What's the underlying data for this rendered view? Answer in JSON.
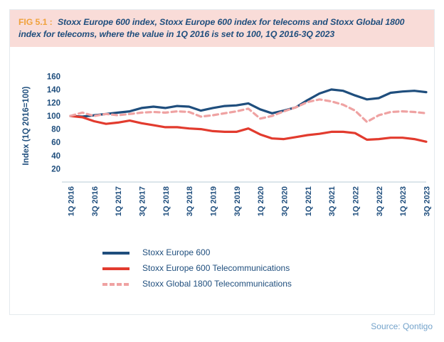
{
  "header": {
    "fig_label": "FIG 5.1 :",
    "title": "Stoxx Europe 600 index, Stoxx Europe 600 index for telecoms and Stoxx Global 1800 index for telecoms, where the value in 1Q 2016 is set to 100, 1Q 2016-3Q 2023"
  },
  "footer": {
    "source": "Source: Qontigo"
  },
  "colors": {
    "header_bg": "#f9dcd8",
    "fig_label": "#f0a23c",
    "navy": "#1f4e7d",
    "axis_line": "#dbe5ea",
    "source_text": "#74a3cb",
    "box_border": "#e4eaee"
  },
  "chart_data": {
    "type": "line",
    "ylabel": "Index (1Q 2016=100)",
    "ylim": [
      0,
      170
    ],
    "y_ticks": [
      20,
      40,
      60,
      80,
      100,
      120,
      140,
      160
    ],
    "x_tick_step": 2,
    "grid": false,
    "legend_position": "bottom-left",
    "categories": [
      "1Q 2016",
      "2Q 2016",
      "3Q 2016",
      "4Q 2016",
      "1Q 2017",
      "2Q 2017",
      "3Q 2017",
      "4Q 2017",
      "1Q 2018",
      "2Q 2018",
      "3Q 2018",
      "4Q 2018",
      "1Q 2019",
      "2Q 2019",
      "3Q 2019",
      "4Q 2019",
      "1Q 2020",
      "2Q 2020",
      "3Q 2020",
      "4Q 2020",
      "1Q 2021",
      "2Q 2021",
      "3Q 2021",
      "4Q 2021",
      "1Q 2022",
      "2Q 2022",
      "3Q 2022",
      "4Q 2022",
      "1Q 2023",
      "2Q 2023",
      "3Q 2023"
    ],
    "series": [
      {
        "name": "Stoxx Europe 600",
        "color": "#1f4e7d",
        "style": "solid",
        "values": [
          100,
          99,
          101,
          103,
          105,
          107,
          112,
          114,
          112,
          115,
          114,
          108,
          112,
          115,
          116,
          119,
          110,
          104,
          108,
          113,
          124,
          134,
          140,
          138,
          131,
          125,
          127,
          135,
          137,
          138,
          136
        ]
      },
      {
        "name": "Stoxx Europe 600 Telecommunications",
        "color": "#e23b2e",
        "style": "solid",
        "values": [
          100,
          98,
          92,
          88,
          90,
          93,
          89,
          86,
          83,
          83,
          81,
          80,
          77,
          76,
          76,
          81,
          72,
          66,
          65,
          68,
          71,
          73,
          76,
          76,
          74,
          64,
          65,
          67,
          67,
          65,
          61
        ]
      },
      {
        "name": "Stoxx Global 1800 Telecommunications",
        "color": "#efa2a2",
        "style": "dashed",
        "values": [
          100,
          105,
          100,
          103,
          101,
          103,
          105,
          106,
          105,
          107,
          106,
          99,
          101,
          104,
          107,
          111,
          96,
          100,
          107,
          113,
          121,
          125,
          122,
          117,
          108,
          91,
          101,
          106,
          107,
          106,
          104
        ]
      }
    ]
  }
}
